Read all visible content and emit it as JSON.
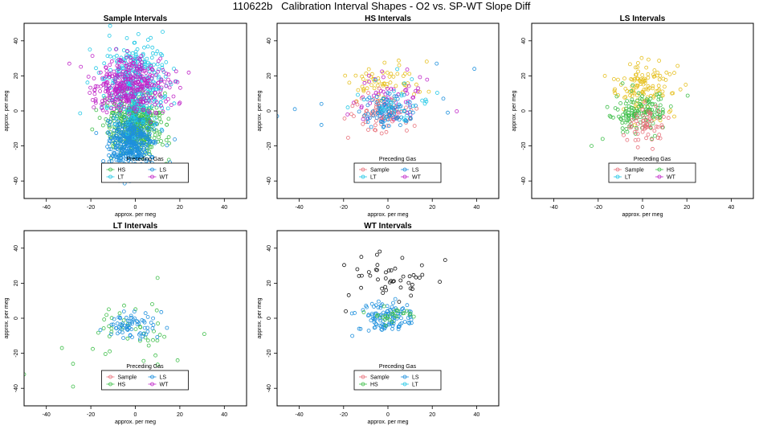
{
  "figure_title": "110622b   Calibration Interval Shapes - O2 vs. SP-WT Slope Diff",
  "colors": {
    "Sample": "#e8707a",
    "HS": "#3fbf4a",
    "LS": "#1e90dd",
    "LT": "#22c8e6",
    "WT": "#c025c8",
    "Unknown": "#111111",
    "Yellow": "#e6c020"
  },
  "chart_data": [
    {
      "type": "scatter",
      "title": "Sample Intervals",
      "xlabel": "approx. per meg",
      "ylabel": "approx. per meg",
      "xlim": [
        -50,
        50
      ],
      "ylim": [
        -50,
        50
      ],
      "xticks": [
        -40,
        -20,
        0,
        20,
        40
      ],
      "yticks": [
        -40,
        -20,
        0,
        20,
        40
      ],
      "legend": {
        "title": "Preceding Gas",
        "position": "bottom-center",
        "columns": 2,
        "entries": [
          "HS",
          "LS",
          "LT",
          "WT"
        ]
      },
      "series": [
        {
          "name": "HS",
          "color_key": "HS",
          "count": 420,
          "mean": [
            0,
            -8
          ],
          "sd": [
            6,
            8
          ]
        },
        {
          "name": "LS",
          "color_key": "LS",
          "count": 420,
          "mean": [
            -2,
            -18
          ],
          "sd": [
            5,
            8
          ]
        },
        {
          "name": "LT",
          "color_key": "LT",
          "count": 360,
          "mean": [
            0,
            15
          ],
          "sd": [
            7,
            13
          ]
        },
        {
          "name": "WT",
          "color_key": "WT",
          "count": 360,
          "mean": [
            -2,
            14
          ],
          "sd": [
            9,
            8
          ]
        }
      ]
    },
    {
      "type": "scatter",
      "title": "HS Intervals",
      "xlabel": "approx. per meg",
      "ylabel": "approx. per meg",
      "xlim": [
        -50,
        50
      ],
      "ylim": [
        -50,
        50
      ],
      "xticks": [
        -40,
        -20,
        0,
        20,
        40
      ],
      "yticks": [
        -40,
        -20,
        0,
        20,
        40
      ],
      "legend": {
        "title": "Preceding Gas",
        "position": "bottom-center",
        "columns": 2,
        "entries": [
          "Sample",
          "LS",
          "LT",
          "WT"
        ]
      },
      "series": [
        {
          "name": "Yellow",
          "color_key": "Yellow",
          "count": 60,
          "mean": [
            -2,
            16
          ],
          "sd": [
            9,
            5
          ]
        },
        {
          "name": "WT",
          "color_key": "WT",
          "count": 60,
          "mean": [
            2,
            8
          ],
          "sd": [
            9,
            7
          ]
        },
        {
          "name": "Sample",
          "color_key": "Sample",
          "count": 80,
          "mean": [
            -2,
            -2
          ],
          "sd": [
            8,
            5
          ]
        },
        {
          "name": "LS",
          "color_key": "LS",
          "count": 90,
          "mean": [
            0,
            0
          ],
          "sd": [
            6,
            5
          ]
        },
        {
          "name": "LT",
          "color_key": "LT",
          "count": 35,
          "mean": [
            4,
            4
          ],
          "sd": [
            9,
            6
          ]
        }
      ],
      "extra_points": [
        {
          "color_key": "LS",
          "x": -50,
          "y": -3
        },
        {
          "color_key": "LS",
          "x": -42,
          "y": 1
        },
        {
          "color_key": "LS",
          "x": -30,
          "y": 4
        },
        {
          "color_key": "LS",
          "x": -30,
          "y": -8
        },
        {
          "color_key": "LS",
          "x": 39,
          "y": 24
        },
        {
          "color_key": "LS",
          "x": 22,
          "y": 27
        },
        {
          "color_key": "LS",
          "x": 27,
          "y": -1
        },
        {
          "color_key": "LS",
          "x": 25,
          "y": 7
        }
      ]
    },
    {
      "type": "scatter",
      "title": "LS Intervals",
      "xlabel": "approx. per meg",
      "ylabel": "approx. per meg",
      "xlim": [
        -50,
        50
      ],
      "ylim": [
        -50,
        50
      ],
      "xticks": [
        -40,
        -20,
        0,
        20,
        40
      ],
      "yticks": [
        -40,
        -20,
        0,
        20,
        40
      ],
      "legend": {
        "title": "Preceding Gas",
        "position": "bottom-center",
        "columns": 2,
        "entries": [
          "Sample",
          "HS",
          "LT",
          "WT"
        ]
      },
      "series": [
        {
          "name": "Yellow",
          "color_key": "Yellow",
          "count": 120,
          "mean": [
            0,
            12
          ],
          "sd": [
            7,
            8
          ]
        },
        {
          "name": "HS",
          "color_key": "HS",
          "count": 140,
          "mean": [
            0,
            0
          ],
          "sd": [
            6,
            6
          ]
        },
        {
          "name": "Sample",
          "color_key": "Sample",
          "count": 60,
          "mean": [
            2,
            -8
          ],
          "sd": [
            4,
            5
          ]
        }
      ],
      "extra_points": [
        {
          "color_key": "HS",
          "x": -23,
          "y": -20
        },
        {
          "color_key": "HS",
          "x": -18,
          "y": -16
        },
        {
          "color_key": "Yellow",
          "x": -17,
          "y": 20
        }
      ]
    },
    {
      "type": "scatter",
      "title": "LT Intervals",
      "xlabel": "approx. per meg",
      "ylabel": "approx. per meg",
      "xlim": [
        -50,
        50
      ],
      "ylim": [
        -50,
        50
      ],
      "xticks": [
        -40,
        -20,
        0,
        20,
        40
      ],
      "yticks": [
        -40,
        -20,
        0,
        20,
        40
      ],
      "legend": {
        "title": "Preceding Gas",
        "position": "bottom-center",
        "columns": 2,
        "entries": [
          "Sample",
          "LS",
          "HS",
          "WT"
        ]
      },
      "series": [
        {
          "name": "HS",
          "color_key": "HS",
          "count": 40,
          "mean": [
            -2,
            -6
          ],
          "sd": [
            10,
            8
          ]
        },
        {
          "name": "LS",
          "color_key": "LS",
          "count": 70,
          "mean": [
            -2,
            -4
          ],
          "sd": [
            6,
            4
          ]
        }
      ],
      "extra_points": [
        {
          "color_key": "HS",
          "x": -52,
          "y": -9
        },
        {
          "color_key": "HS",
          "x": -50,
          "y": -32
        },
        {
          "color_key": "HS",
          "x": -33,
          "y": -17
        },
        {
          "color_key": "HS",
          "x": -28,
          "y": -26
        },
        {
          "color_key": "HS",
          "x": -28,
          "y": -39
        },
        {
          "color_key": "HS",
          "x": 20,
          "y": -52
        },
        {
          "color_key": "HS",
          "x": 31,
          "y": -9
        },
        {
          "color_key": "HS",
          "x": 10,
          "y": 23
        },
        {
          "color_key": "HS",
          "x": 19,
          "y": -24
        }
      ]
    },
    {
      "type": "scatter",
      "title": "WT Intervals",
      "xlabel": "approx. per meg",
      "ylabel": "approx. per meg",
      "xlim": [
        -50,
        50
      ],
      "ylim": [
        -50,
        50
      ],
      "xticks": [
        -40,
        -20,
        0,
        20,
        40
      ],
      "yticks": [
        -40,
        -20,
        0,
        20,
        40
      ],
      "legend": {
        "title": "Preceding Gas",
        "position": "bottom-center",
        "columns": 2,
        "entries": [
          "Sample",
          "LS",
          "HS",
          "LT"
        ]
      },
      "series": [
        {
          "name": "Unknown",
          "color_key": "Unknown",
          "count": 45,
          "mean": [
            2,
            25
          ],
          "sd": [
            9,
            6
          ]
        },
        {
          "name": "LS",
          "color_key": "LS",
          "count": 110,
          "mean": [
            0,
            0
          ],
          "sd": [
            5,
            4
          ]
        },
        {
          "name": "HS",
          "color_key": "HS",
          "count": 25,
          "mean": [
            2,
            2
          ],
          "sd": [
            5,
            3
          ]
        }
      ],
      "extra_points": [
        {
          "color_key": "LS",
          "x": -15,
          "y": 3
        },
        {
          "color_key": "LS",
          "x": -13,
          "y": -6
        },
        {
          "color_key": "Unknown",
          "x": -12,
          "y": 35
        },
        {
          "color_key": "Unknown",
          "x": -19,
          "y": 4
        }
      ]
    }
  ]
}
